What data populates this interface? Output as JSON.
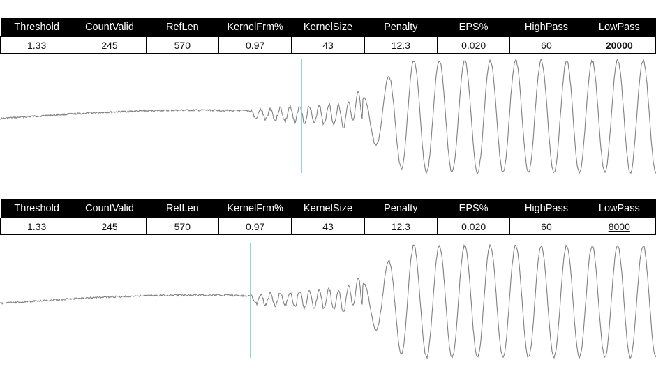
{
  "panels": [
    {
      "headers": [
        "Threshold",
        "CountValid",
        "RefLen",
        "KernelFrm%",
        "KernelSize",
        "Penalty",
        "EPS%",
        "HighPass",
        "LowPass"
      ],
      "values": [
        "1.33",
        "245",
        "570",
        "0.97",
        "43",
        "12.3",
        "0.020",
        "60",
        "20000"
      ],
      "lowpass_color": "#111111"
    },
    {
      "headers": [
        "Threshold",
        "CountValid",
        "RefLen",
        "KernelFrm%",
        "KernelSize",
        "Penalty",
        "EPS%",
        "HighPass",
        "LowPass"
      ],
      "values": [
        "1.33",
        "245",
        "570",
        "0.97",
        "43",
        "12.3",
        "0.020",
        "60",
        "8000"
      ],
      "lowpass_color": "#cc0000"
    }
  ],
  "colors": {
    "waveform": "#808080",
    "marker": "#6fc3d8"
  }
}
